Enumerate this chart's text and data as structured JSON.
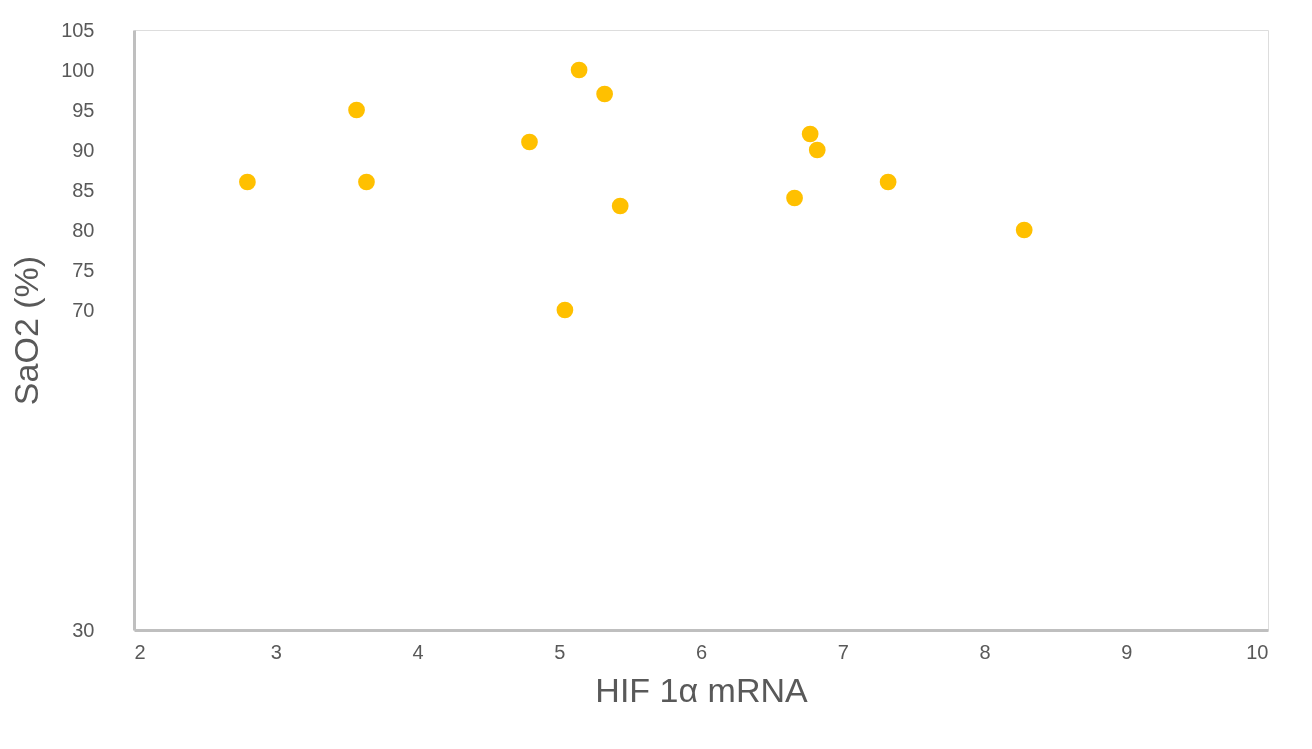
{
  "chart_data": {
    "type": "scatter",
    "xlabel": "HIF 1α mRNA",
    "ylabel": "SaO2 (%)",
    "x": [
      2.8,
      3.57,
      3.64,
      4.79,
      5.14,
      5.32,
      5.04,
      5.43,
      6.66,
      6.77,
      6.82,
      7.32,
      8.28
    ],
    "series": [
      {
        "color": "#ffc000",
        "values": [
          86,
          95,
          86,
          91,
          100,
          97,
          70,
          83,
          84,
          92,
          90,
          86,
          80
        ]
      }
    ],
    "xlim": [
      2,
      10
    ],
    "xticks": [
      2,
      3,
      4,
      5,
      6,
      7,
      8,
      9,
      10
    ],
    "ylim": [
      30,
      105
    ],
    "yticks": [
      30,
      70,
      75,
      80,
      85,
      90,
      95,
      100,
      105
    ],
    "grid": false
  }
}
